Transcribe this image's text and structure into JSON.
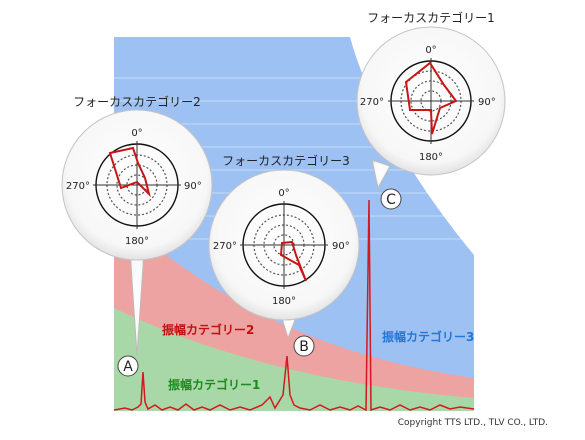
{
  "colors": {
    "band1": "#a9d8a8",
    "band2": "#eea3a3",
    "band3": "#9dc1f2",
    "band3_lines": "#c8dcf8",
    "signal": "#d2191d",
    "polar_trace": "#c61616",
    "label1": "#1c8a1c",
    "label2": "#c01010",
    "label3": "#2476d8"
  },
  "bands": [
    {
      "label": "振幅カテゴリー1"
    },
    {
      "label": "振幅カテゴリー2"
    },
    {
      "label": "振幅カテゴリー3"
    }
  ],
  "markers": [
    {
      "letter": "A",
      "category": "フォーカスカテゴリー2"
    },
    {
      "letter": "B",
      "category": "フォーカスカテゴリー3"
    },
    {
      "letter": "C",
      "category": "フォーカスカテゴリー1"
    }
  ],
  "polar_plots": [
    {
      "title": "フォーカスカテゴリー1",
      "angles": [
        "0°",
        "90°",
        "180°",
        "270°"
      ]
    },
    {
      "title": "フォーカスカテゴリー2",
      "angles": [
        "0°",
        "90°",
        "180°",
        "270°"
      ]
    },
    {
      "title": "フォーカスカテゴリー3",
      "angles": [
        "0°",
        "90°",
        "180°",
        "270°"
      ]
    }
  ],
  "copyright": "Copyright TTS LTD., TLV CO., LTD."
}
